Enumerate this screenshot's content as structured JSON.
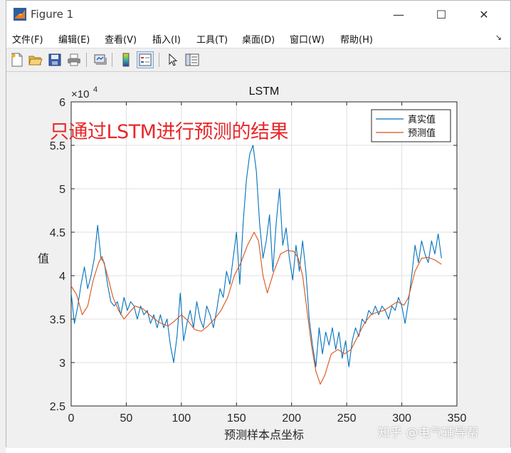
{
  "window": {
    "title": "Figure 1",
    "controls": [
      "—",
      "☐",
      "✕"
    ]
  },
  "menu": {
    "items": [
      "文件(F)",
      "编辑(E)",
      "查看(V)",
      "插入(I)",
      "工具(T)",
      "桌面(D)",
      "窗口(W)",
      "帮助(H)"
    ],
    "overflow_arrow": "↘"
  },
  "toolbar": {
    "icons": [
      "new-figure-icon",
      "open-file-icon",
      "save-icon",
      "print-icon",
      "link-plot-icon",
      "colorbar-icon",
      "legend-icon",
      "pointer-icon",
      "property-editor-icon"
    ]
  },
  "annotation": "只通过LSTM进行预测的结果",
  "watermark": "知乎 @电气辅导帮",
  "chart_data": {
    "type": "line",
    "title": "LSTM",
    "xlabel": "预测样本点坐标",
    "ylabel": "值",
    "xlim": [
      0,
      350
    ],
    "ylim": [
      25000,
      60000
    ],
    "x_ticks": [
      0,
      50,
      100,
      150,
      200,
      250,
      300,
      350
    ],
    "x_tick_labels": [
      "0",
      "50",
      "100",
      "150",
      "200",
      "250",
      "300",
      "350"
    ],
    "y_ticks": [
      25000,
      30000,
      35000,
      40000,
      45000,
      50000,
      55000,
      60000
    ],
    "y_tick_labels": [
      "2.5",
      "3",
      "3.5",
      "4",
      "4.5",
      "5",
      "5.5",
      "6"
    ],
    "y_exponent_label": "×10",
    "y_exponent_power": "4",
    "grid": true,
    "legend_position": "top-right",
    "series": [
      {
        "name": "真实值",
        "color": "#0072bd",
        "points": [
          [
            0,
            38000
          ],
          [
            3,
            34500
          ],
          [
            6,
            36500
          ],
          [
            9,
            39000
          ],
          [
            12,
            41000
          ],
          [
            15,
            38500
          ],
          [
            18,
            40000
          ],
          [
            21,
            42000
          ],
          [
            24,
            45800
          ],
          [
            27,
            42000
          ],
          [
            30,
            41500
          ],
          [
            33,
            39000
          ],
          [
            36,
            37000
          ],
          [
            39,
            36500
          ],
          [
            42,
            37000
          ],
          [
            45,
            35500
          ],
          [
            48,
            37500
          ],
          [
            51,
            36000
          ],
          [
            54,
            37000
          ],
          [
            57,
            36500
          ],
          [
            60,
            35000
          ],
          [
            63,
            36500
          ],
          [
            66,
            35500
          ],
          [
            69,
            36000
          ],
          [
            72,
            34500
          ],
          [
            75,
            35500
          ],
          [
            78,
            34000
          ],
          [
            81,
            35500
          ],
          [
            84,
            34000
          ],
          [
            87,
            35000
          ],
          [
            90,
            32000
          ],
          [
            93,
            30000
          ],
          [
            96,
            33000
          ],
          [
            99,
            38000
          ],
          [
            102,
            32500
          ],
          [
            105,
            34500
          ],
          [
            108,
            36000
          ],
          [
            111,
            34000
          ],
          [
            114,
            37000
          ],
          [
            117,
            35000
          ],
          [
            120,
            34000
          ],
          [
            123,
            36500
          ],
          [
            126,
            35500
          ],
          [
            129,
            34000
          ],
          [
            132,
            36000
          ],
          [
            135,
            38500
          ],
          [
            138,
            37500
          ],
          [
            141,
            40500
          ],
          [
            144,
            39000
          ],
          [
            147,
            42000
          ],
          [
            150,
            45000
          ],
          [
            153,
            39000
          ],
          [
            156,
            46000
          ],
          [
            159,
            51000
          ],
          [
            162,
            54000
          ],
          [
            165,
            55000
          ],
          [
            168,
            52000
          ],
          [
            171,
            46000
          ],
          [
            174,
            42000
          ],
          [
            177,
            44000
          ],
          [
            180,
            47000
          ],
          [
            183,
            40500
          ],
          [
            186,
            46000
          ],
          [
            189,
            50000
          ],
          [
            192,
            43500
          ],
          [
            195,
            45500
          ],
          [
            198,
            42000
          ],
          [
            201,
            39500
          ],
          [
            204,
            43500
          ],
          [
            207,
            40500
          ],
          [
            210,
            44000
          ],
          [
            213,
            40500
          ],
          [
            216,
            35000
          ],
          [
            219,
            32000
          ],
          [
            222,
            29500
          ],
          [
            225,
            34000
          ],
          [
            228,
            31000
          ],
          [
            231,
            33500
          ],
          [
            234,
            32000
          ],
          [
            237,
            34000
          ],
          [
            240,
            31500
          ],
          [
            243,
            33500
          ],
          [
            246,
            30500
          ],
          [
            249,
            32500
          ],
          [
            252,
            29500
          ],
          [
            255,
            32500
          ],
          [
            258,
            34000
          ],
          [
            261,
            33000
          ],
          [
            264,
            35000
          ],
          [
            267,
            34500
          ],
          [
            270,
            36000
          ],
          [
            273,
            35500
          ],
          [
            276,
            36500
          ],
          [
            279,
            35500
          ],
          [
            282,
            36500
          ],
          [
            285,
            36000
          ],
          [
            288,
            35000
          ],
          [
            291,
            36500
          ],
          [
            294,
            36000
          ],
          [
            297,
            37500
          ],
          [
            300,
            36500
          ],
          [
            303,
            34500
          ],
          [
            306,
            37000
          ],
          [
            309,
            40000
          ],
          [
            312,
            43500
          ],
          [
            315,
            41500
          ],
          [
            318,
            44000
          ],
          [
            321,
            42500
          ],
          [
            324,
            41500
          ],
          [
            327,
            44000
          ],
          [
            330,
            42500
          ],
          [
            333,
            44800
          ],
          [
            336,
            42000
          ]
        ]
      },
      {
        "name": "预测值",
        "color": "#d95319",
        "points": [
          [
            0,
            38800
          ],
          [
            5,
            37800
          ],
          [
            10,
            35500
          ],
          [
            15,
            36500
          ],
          [
            20,
            39500
          ],
          [
            25,
            41500
          ],
          [
            28,
            42200
          ],
          [
            33,
            40000
          ],
          [
            38,
            37500
          ],
          [
            43,
            36000
          ],
          [
            48,
            35000
          ],
          [
            53,
            35800
          ],
          [
            58,
            36500
          ],
          [
            65,
            36200
          ],
          [
            72,
            35400
          ],
          [
            80,
            34600
          ],
          [
            88,
            34200
          ],
          [
            94,
            34800
          ],
          [
            100,
            35500
          ],
          [
            106,
            34800
          ],
          [
            112,
            33800
          ],
          [
            118,
            33600
          ],
          [
            124,
            34200
          ],
          [
            130,
            35000
          ],
          [
            136,
            36000
          ],
          [
            142,
            37500
          ],
          [
            148,
            40000
          ],
          [
            154,
            41500
          ],
          [
            160,
            43500
          ],
          [
            166,
            45000
          ],
          [
            170,
            44000
          ],
          [
            174,
            40000
          ],
          [
            178,
            38000
          ],
          [
            184,
            40500
          ],
          [
            190,
            42500
          ],
          [
            196,
            42900
          ],
          [
            202,
            42800
          ],
          [
            206,
            42000
          ],
          [
            210,
            40000
          ],
          [
            214,
            36000
          ],
          [
            218,
            32000
          ],
          [
            222,
            29000
          ],
          [
            226,
            27500
          ],
          [
            230,
            28500
          ],
          [
            236,
            31000
          ],
          [
            242,
            31500
          ],
          [
            248,
            31000
          ],
          [
            254,
            31500
          ],
          [
            260,
            33000
          ],
          [
            266,
            34500
          ],
          [
            272,
            35500
          ],
          [
            278,
            35800
          ],
          [
            284,
            36000
          ],
          [
            290,
            36500
          ],
          [
            296,
            37000
          ],
          [
            302,
            36600
          ],
          [
            306,
            37500
          ],
          [
            312,
            40500
          ],
          [
            318,
            42000
          ],
          [
            324,
            42100
          ],
          [
            330,
            41800
          ],
          [
            336,
            41300
          ]
        ]
      }
    ]
  }
}
